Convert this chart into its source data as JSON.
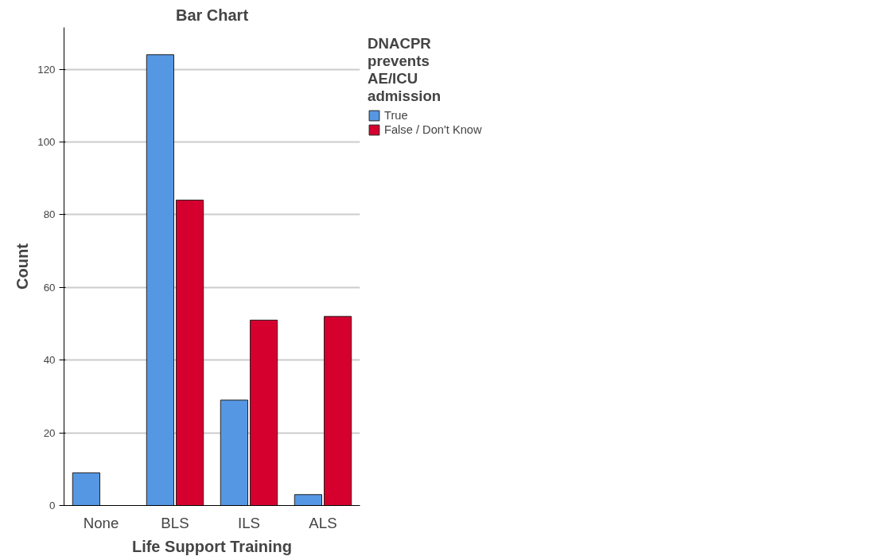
{
  "chart_data": {
    "type": "bar",
    "title": "Bar Chart",
    "xlabel": "Life Support Training",
    "ylabel": "Count",
    "legend_title": "DNACPR prevents AE/ICU admission",
    "categories": [
      "None",
      "BLS",
      "ILS",
      "ALS"
    ],
    "series": [
      {
        "name": "True",
        "color": "#5597e3",
        "values": [
          9,
          124,
          29,
          3
        ]
      },
      {
        "name": "False / Don't Know",
        "color": "#d6002f",
        "values": [
          null,
          84,
          51,
          52
        ]
      }
    ],
    "ylim": [
      0,
      131.5
    ],
    "yticks": [
      0,
      20,
      40,
      60,
      80,
      100,
      120
    ],
    "grid": "y",
    "legend": "top right"
  }
}
